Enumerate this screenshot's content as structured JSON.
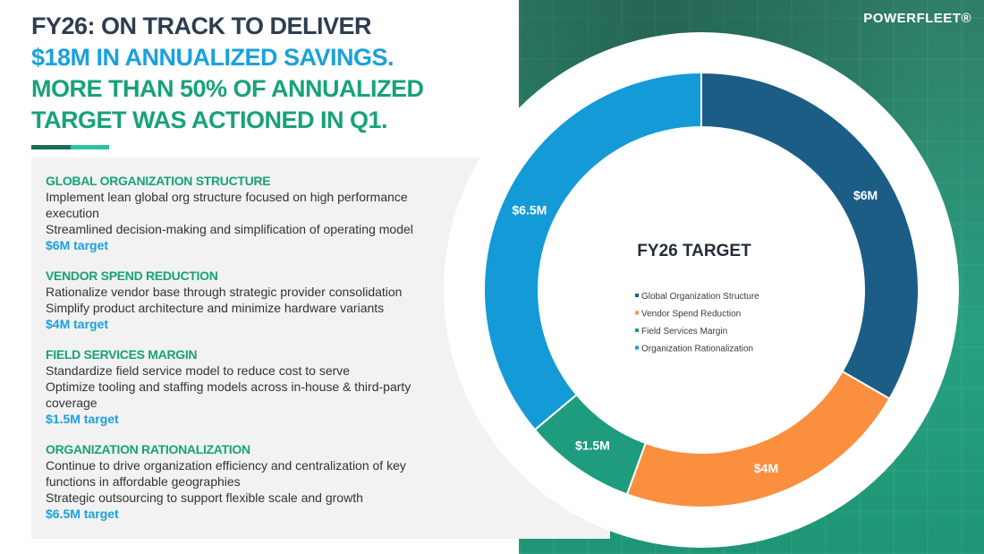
{
  "brand": {
    "logo_text": "POWERFLEET®"
  },
  "headline": {
    "line1": "FY26: ON TRACK TO DELIVER",
    "line2": "$18M IN ANNUALIZED SAVINGS.",
    "line3a": "MORE THAN 50% OF ANNUALIZED",
    "line3b": "TARGET WAS ACTIONED IN Q1."
  },
  "sections": [
    {
      "title": "GLOBAL ORGANIZATION STRUCTURE",
      "lines": [
        "Implement lean global org structure focused on high performance execution",
        "Streamlined decision-making and simplification of operating model"
      ],
      "target": "$6M target"
    },
    {
      "title": "VENDOR SPEND REDUCTION",
      "lines": [
        "Rationalize vendor base through strategic provider consolidation",
        "Simplify product architecture and minimize hardware variants"
      ],
      "target": "$4M target"
    },
    {
      "title": "FIELD SERVICES MARGIN",
      "lines": [
        "Standardize field service model to reduce cost to serve",
        "Optimize tooling and staffing models across in-house & third-party coverage"
      ],
      "target": "$1.5M target"
    },
    {
      "title": "ORGANIZATION RATIONALIZATION",
      "lines": [
        "Continue to drive organization efficiency and centralization of key functions in affordable geographies",
        "Strategic outsourcing to support flexible scale and growth"
      ],
      "target": "$6.5M target"
    }
  ],
  "chart_data": {
    "type": "pie",
    "title": "FY26 TARGET",
    "unit": "$M",
    "categories": [
      "Global Organization Structure",
      "Vendor Spend Reduction",
      "Field Services Margin",
      "Organization Rationalization"
    ],
    "values": [
      6,
      4,
      1.5,
      6.5
    ],
    "data_labels": [
      "$6M",
      "$4M",
      "$1.5M",
      "$6.5M"
    ],
    "colors": [
      "#1c5d86",
      "#fb8f40",
      "#1f9b7e",
      "#149bd7"
    ],
    "legend_position": "center"
  }
}
